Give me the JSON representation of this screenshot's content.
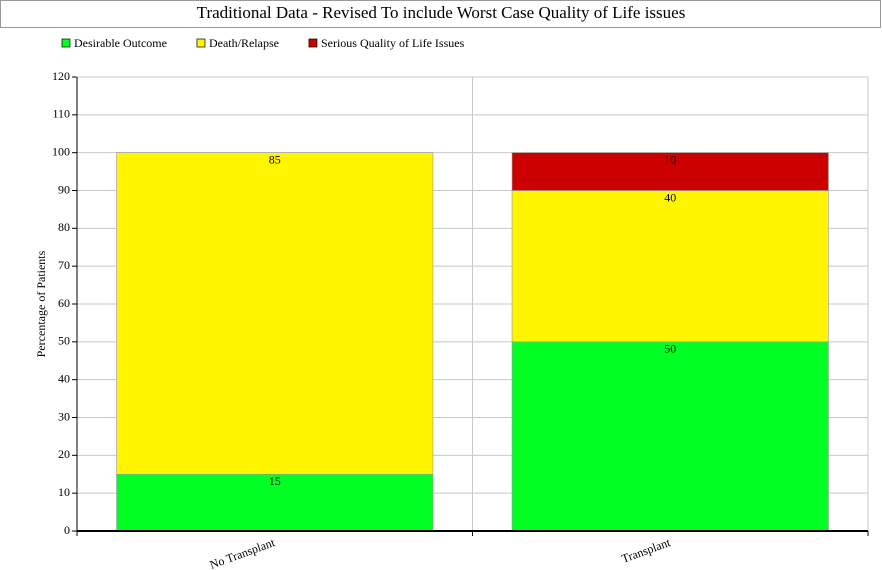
{
  "chart_data": {
    "type": "bar",
    "stacked": true,
    "title": "Traditional Data - Revised To include Worst Case Quality of Life issues",
    "ylabel": "Percentage of Patients",
    "categories": [
      "No Transplant",
      "Transplant"
    ],
    "series": [
      {
        "name": "Desirable Outcome",
        "color": "#00ff22",
        "values": [
          15,
          50
        ]
      },
      {
        "name": "Death/Relapse",
        "color": "#fff500",
        "values": [
          85,
          40
        ]
      },
      {
        "name": "Serious Quality of Life Issues",
        "color": "#cc0000",
        "values": [
          null,
          10
        ]
      }
    ],
    "ylim": [
      0,
      120
    ],
    "yticks": [
      0,
      10,
      20,
      30,
      40,
      50,
      60,
      70,
      80,
      90,
      100,
      110,
      120
    ],
    "grid": true
  }
}
